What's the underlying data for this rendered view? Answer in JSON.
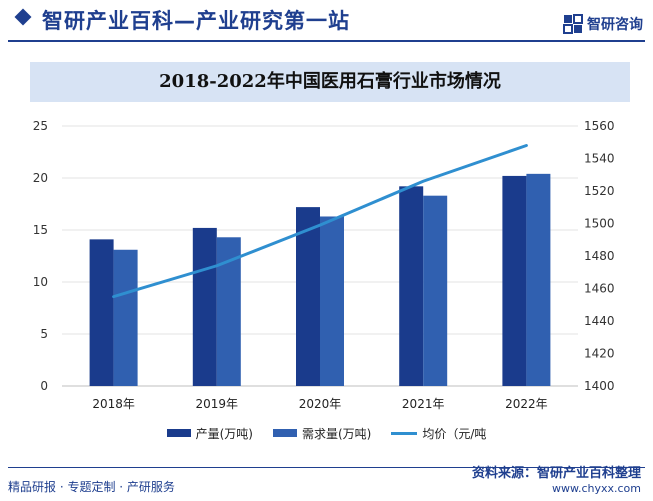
{
  "header": {
    "title": "智研产业百科—产业研究第一站",
    "brand": "智研咨询"
  },
  "colors": {
    "production": "#1a3b8c",
    "demand": "#3060b0",
    "price_line": "#2f8fd0",
    "brand": "#1f3f8f",
    "title_band": "#d7e3f4"
  },
  "footer": {
    "source": "资料来源：智研产业百科整理",
    "left_text": "精品研报 · 专题定制 · 产研服务",
    "url": "www.chyxx.com"
  },
  "chart_data": {
    "type": "bar",
    "title": "2018-2022年中国医用石膏行业市场情况",
    "categories": [
      "2018年",
      "2019年",
      "2020年",
      "2021年",
      "2022年"
    ],
    "series": [
      {
        "name": "产量(万吨)",
        "type": "bar",
        "axis": "left",
        "color": "#1a3b8c",
        "values": [
          14.1,
          15.2,
          17.2,
          19.2,
          20.2
        ]
      },
      {
        "name": "需求量(万吨)",
        "type": "bar",
        "axis": "left",
        "color": "#3060b0",
        "values": [
          13.1,
          14.3,
          16.3,
          18.3,
          20.4
        ]
      },
      {
        "name": "均价（元/吨",
        "type": "line",
        "axis": "right",
        "color": "#2f8fd0",
        "values": [
          1455,
          1474,
          1499,
          1526,
          1548
        ]
      }
    ],
    "y_left": {
      "min": 0,
      "max": 25,
      "ticks": [
        0,
        5,
        10,
        15,
        20,
        25
      ]
    },
    "y_right": {
      "min": 1400,
      "max": 1560,
      "ticks": [
        1400,
        1420,
        1440,
        1460,
        1480,
        1500,
        1520,
        1540,
        1560
      ]
    },
    "grid": true,
    "legend": "bottom"
  }
}
